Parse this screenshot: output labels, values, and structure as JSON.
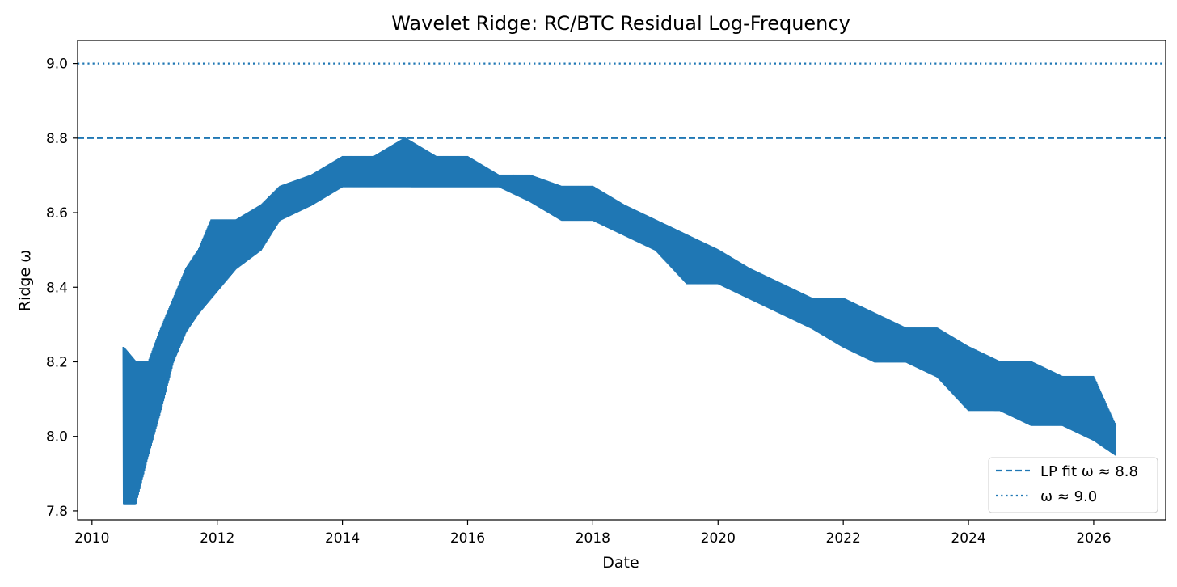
{
  "chart_data": {
    "type": "line",
    "title": "Wavelet Ridge: RC/BTC Residual Log-Frequency",
    "xlabel": "Date",
    "ylabel": "Ridge ω",
    "xlim": [
      2009.77,
      2027.15
    ],
    "ylim": [
      7.776,
      9.062
    ],
    "x_ticks": [
      "2010",
      "2012",
      "2014",
      "2016",
      "2018",
      "2020",
      "2022",
      "2024",
      "2026"
    ],
    "y_ticks": [
      "7.8",
      "8.0",
      "8.2",
      "8.4",
      "8.6",
      "8.8",
      "9.0"
    ],
    "grid": false,
    "legend": "bottom-right",
    "series_color": "#1f77b4",
    "reference_lines": [
      {
        "label": "LP fit ω ≈ 8.8",
        "y": 8.8,
        "style": "dashed"
      },
      {
        "label": "ω ≈ 9.0",
        "y": 9.0,
        "style": "dotted"
      }
    ],
    "series": [
      {
        "envelope": [
          {
            "x": 2010.5,
            "lo": 7.82,
            "hi": 8.24
          },
          {
            "x": 2010.7,
            "lo": 7.82,
            "hi": 8.2
          },
          {
            "x": 2010.9,
            "lo": 7.95,
            "hi": 8.2
          },
          {
            "x": 2011.1,
            "lo": 8.07,
            "hi": 8.29
          },
          {
            "x": 2011.3,
            "lo": 8.2,
            "hi": 8.37
          },
          {
            "x": 2011.5,
            "lo": 8.28,
            "hi": 8.45
          },
          {
            "x": 2011.7,
            "lo": 8.33,
            "hi": 8.5
          },
          {
            "x": 2011.9,
            "lo": 8.37,
            "hi": 8.58
          },
          {
            "x": 2012.3,
            "lo": 8.45,
            "hi": 8.58
          },
          {
            "x": 2012.7,
            "lo": 8.5,
            "hi": 8.62
          },
          {
            "x": 2013.0,
            "lo": 8.58,
            "hi": 8.67
          },
          {
            "x": 2013.5,
            "lo": 8.62,
            "hi": 8.7
          },
          {
            "x": 2014.0,
            "lo": 8.67,
            "hi": 8.75
          },
          {
            "x": 2014.5,
            "lo": 8.67,
            "hi": 8.75
          },
          {
            "x": 2015.0,
            "lo": 8.67,
            "hi": 8.8
          },
          {
            "x": 2015.5,
            "lo": 8.67,
            "hi": 8.75
          },
          {
            "x": 2016.0,
            "lo": 8.67,
            "hi": 8.75
          },
          {
            "x": 2016.5,
            "lo": 8.67,
            "hi": 8.7
          },
          {
            "x": 2017.0,
            "lo": 8.63,
            "hi": 8.7
          },
          {
            "x": 2017.5,
            "lo": 8.58,
            "hi": 8.67
          },
          {
            "x": 2018.0,
            "lo": 8.58,
            "hi": 8.67
          },
          {
            "x": 2018.5,
            "lo": 8.54,
            "hi": 8.62
          },
          {
            "x": 2019.0,
            "lo": 8.5,
            "hi": 8.58
          },
          {
            "x": 2019.5,
            "lo": 8.41,
            "hi": 8.54
          },
          {
            "x": 2020.0,
            "lo": 8.41,
            "hi": 8.5
          },
          {
            "x": 2020.5,
            "lo": 8.37,
            "hi": 8.45
          },
          {
            "x": 2021.0,
            "lo": 8.33,
            "hi": 8.41
          },
          {
            "x": 2021.5,
            "lo": 8.29,
            "hi": 8.37
          },
          {
            "x": 2022.0,
            "lo": 8.24,
            "hi": 8.37
          },
          {
            "x": 2022.5,
            "lo": 8.2,
            "hi": 8.33
          },
          {
            "x": 2023.0,
            "lo": 8.2,
            "hi": 8.29
          },
          {
            "x": 2023.5,
            "lo": 8.16,
            "hi": 8.29
          },
          {
            "x": 2024.0,
            "lo": 8.07,
            "hi": 8.24
          },
          {
            "x": 2024.5,
            "lo": 8.07,
            "hi": 8.2
          },
          {
            "x": 2025.0,
            "lo": 8.03,
            "hi": 8.2
          },
          {
            "x": 2025.5,
            "lo": 8.03,
            "hi": 8.16
          },
          {
            "x": 2026.0,
            "lo": 7.99,
            "hi": 8.16
          },
          {
            "x": 2026.35,
            "lo": 7.95,
            "hi": 8.03
          }
        ]
      }
    ]
  }
}
